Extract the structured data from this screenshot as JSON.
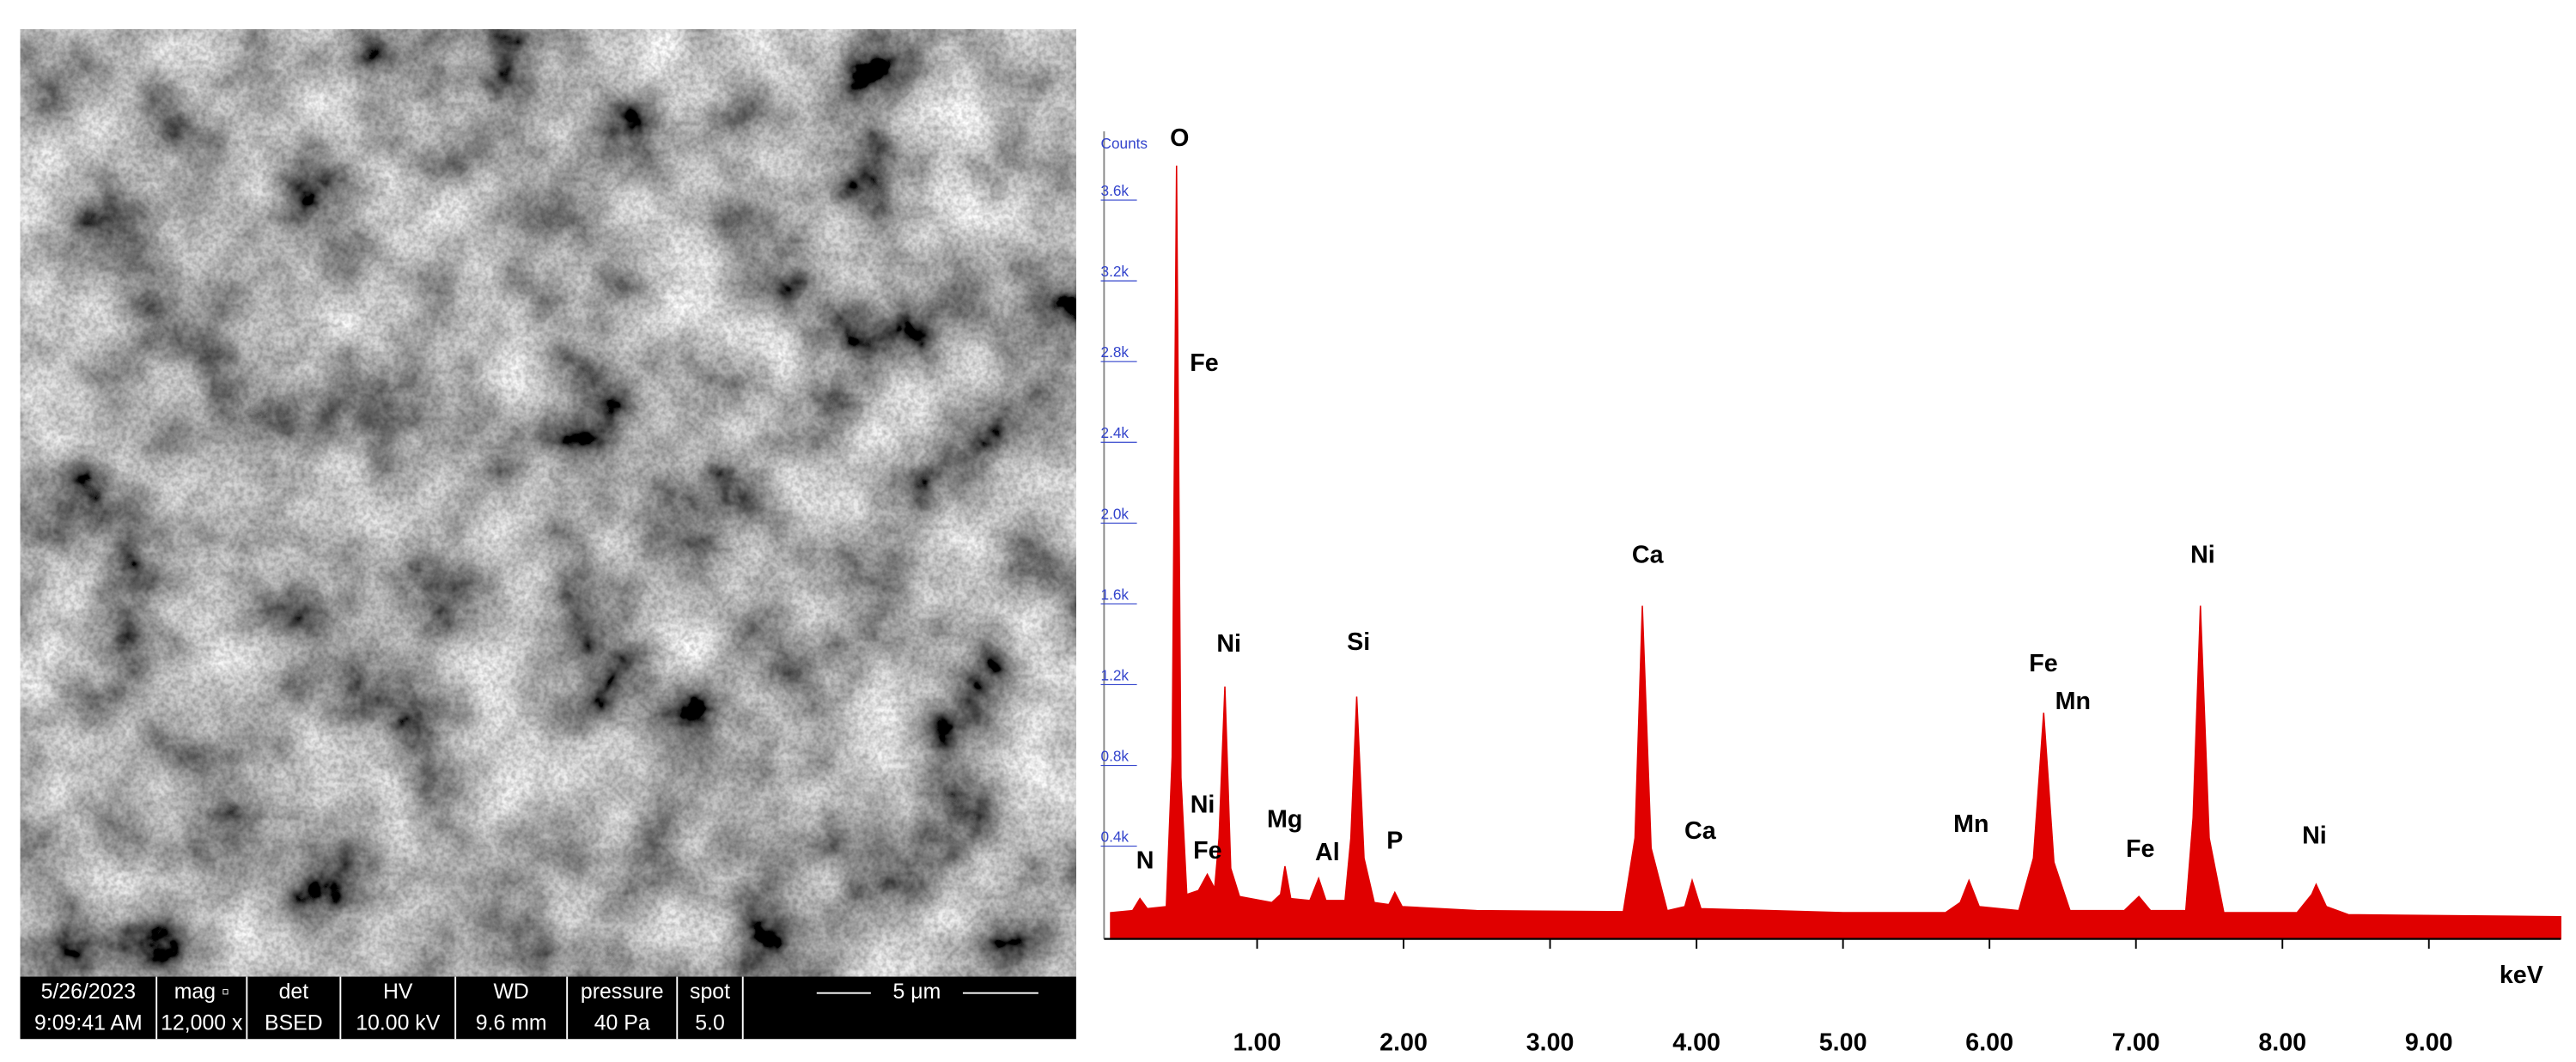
{
  "sem_info": {
    "headers": [
      "5/26/2023",
      "mag ▫",
      "det",
      "HV",
      "WD",
      "pressure",
      "spot",
      "5 μm"
    ],
    "values": [
      "9:09:41 AM",
      "12,000 x",
      "BSED",
      "10.00 kV",
      "9.6 mm",
      "40 Pa",
      "5.0"
    ]
  },
  "chart_data": {
    "type": "area",
    "y_label": "Counts",
    "x_label": "keV",
    "color": "#e00000",
    "xlim": [
      0,
      9.9
    ],
    "ylim": [
      -100,
      3900
    ],
    "xticks": [
      {
        "value": 1,
        "label": "1.00"
      },
      {
        "value": 2,
        "label": "2.00"
      },
      {
        "value": 3,
        "label": "3.00"
      },
      {
        "value": 4,
        "label": "4.00"
      },
      {
        "value": 5,
        "label": "5.00"
      },
      {
        "value": 6,
        "label": "6.00"
      },
      {
        "value": 7,
        "label": "7.00"
      },
      {
        "value": 8,
        "label": "8.00"
      },
      {
        "value": 9,
        "label": "9.00"
      }
    ],
    "yticks": [
      {
        "value": 400,
        "label": "0.4k"
      },
      {
        "value": 800,
        "label": "0.8k"
      },
      {
        "value": 1200,
        "label": "1.2k"
      },
      {
        "value": 1600,
        "label": "1.6k"
      },
      {
        "value": 2000,
        "label": "2.0k"
      },
      {
        "value": 2400,
        "label": "2.4k"
      },
      {
        "value": 2800,
        "label": "2.8k"
      },
      {
        "value": 3200,
        "label": "3.2k"
      },
      {
        "value": 3600,
        "label": "3.6k"
      }
    ],
    "x": [
      0.0,
      0.15,
      0.2,
      0.25,
      0.38,
      0.42,
      0.45,
      0.48,
      0.52,
      0.6,
      0.66,
      0.71,
      0.74,
      0.78,
      0.82,
      0.88,
      1.1,
      1.16,
      1.19,
      1.23,
      1.36,
      1.42,
      1.47,
      1.6,
      1.64,
      1.68,
      1.73,
      1.8,
      1.9,
      1.94,
      1.99,
      2.5,
      3.5,
      3.58,
      3.63,
      3.69,
      3.8,
      3.92,
      3.97,
      4.03,
      5.0,
      5.7,
      5.8,
      5.86,
      5.93,
      6.2,
      6.3,
      6.37,
      6.44,
      6.55,
      6.92,
      7.02,
      7.1,
      7.34,
      7.39,
      7.44,
      7.5,
      7.6,
      8.1,
      8.2,
      8.23,
      8.3,
      8.45,
      9.9
    ],
    "values": [
      30,
      40,
      100,
      50,
      60,
      800,
      3730,
      700,
      120,
      140,
      220,
      150,
      400,
      1150,
      250,
      110,
      80,
      120,
      260,
      100,
      90,
      200,
      90,
      90,
      400,
      1100,
      300,
      80,
      70,
      130,
      60,
      40,
      35,
      400,
      1550,
      350,
      40,
      60,
      190,
      50,
      30,
      30,
      80,
      190,
      60,
      40,
      300,
      1020,
      280,
      40,
      40,
      110,
      40,
      40,
      500,
      1550,
      400,
      30,
      30,
      120,
      170,
      60,
      20,
      10
    ],
    "annotations": [
      "O",
      "Fe",
      "Ni",
      "Ni",
      "Fe",
      "N",
      "Mg",
      "Al",
      "Si",
      "P",
      "Ca",
      "Ca",
      "Mn",
      "Fe",
      "Mn",
      "Fe",
      "Ni",
      "Ni"
    ]
  }
}
